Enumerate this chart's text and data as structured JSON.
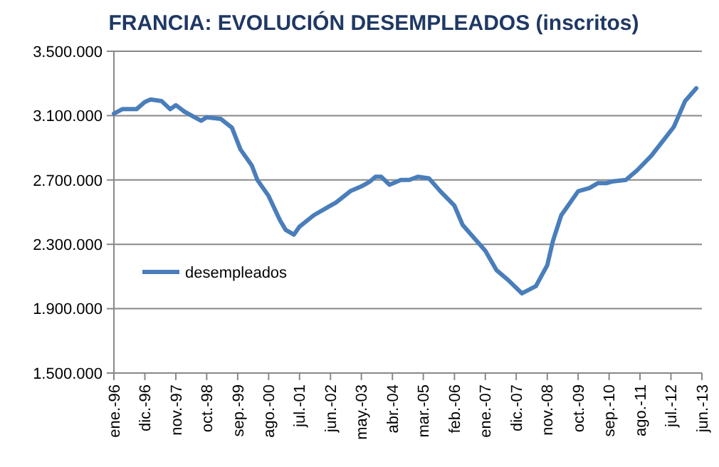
{
  "chart_data": {
    "type": "line",
    "title": "FRANCIA: EVOLUCIÓN DESEMPLEADOS (inscritos)",
    "x": [
      "1996-01",
      "1996-04",
      "1996-09",
      "1996-12",
      "1997-02",
      "1997-06",
      "1997-09",
      "1997-11",
      "1998-02",
      "1998-05",
      "1998-08",
      "1998-10",
      "1999-03",
      "1999-07",
      "1999-10",
      "2000-02",
      "2000-04",
      "2000-08",
      "2000-12",
      "2001-02",
      "2001-05",
      "2001-07",
      "2001-12",
      "2002-05",
      "2002-08",
      "2003-01",
      "2003-05",
      "2003-08",
      "2003-10",
      "2003-12",
      "2004-03",
      "2004-07",
      "2004-10",
      "2005-01",
      "2005-05",
      "2005-09",
      "2006-02",
      "2006-05",
      "2006-09",
      "2007-01",
      "2007-05",
      "2007-09",
      "2008-02",
      "2008-07",
      "2008-11",
      "2009-01",
      "2009-04",
      "2009-06",
      "2009-10",
      "2010-02",
      "2010-05",
      "2010-08",
      "2010-10",
      "2011-03",
      "2011-07",
      "2011-12",
      "2012-04",
      "2012-08",
      "2012-10",
      "2012-12",
      "2013-04"
    ],
    "series": [
      {
        "name": "desempleados",
        "color": "#4a7ebb",
        "values": [
          3112000,
          3140000,
          3140000,
          3185000,
          3200000,
          3190000,
          3140000,
          3165000,
          3125000,
          3097000,
          3068000,
          3090000,
          3080000,
          3025000,
          2890000,
          2790000,
          2700000,
          2600000,
          2450000,
          2390000,
          2360000,
          2410000,
          2480000,
          2530000,
          2560000,
          2630000,
          2660000,
          2690000,
          2720000,
          2720000,
          2670000,
          2700000,
          2700000,
          2720000,
          2710000,
          2630000,
          2540000,
          2420000,
          2340000,
          2260000,
          2140000,
          2080000,
          1995000,
          2040000,
          2170000,
          2320000,
          2480000,
          2530000,
          2630000,
          2650000,
          2680000,
          2680000,
          2690000,
          2700000,
          2760000,
          2850000,
          2940000,
          3030000,
          3110000,
          3190000,
          3270000
        ]
      }
    ],
    "xlim": [
      "1996-01",
      "2013-06"
    ],
    "xticks": [
      {
        "value": "1996-01",
        "label": "ene.-96"
      },
      {
        "value": "1996-12",
        "label": "dic.-96"
      },
      {
        "value": "1997-11",
        "label": "nov.-97"
      },
      {
        "value": "1998-10",
        "label": "oct.-98"
      },
      {
        "value": "1999-09",
        "label": "sep.-99"
      },
      {
        "value": "2000-08",
        "label": "ago.-00"
      },
      {
        "value": "2001-07",
        "label": "jul.-01"
      },
      {
        "value": "2002-06",
        "label": "jun.-02"
      },
      {
        "value": "2003-05",
        "label": "may.-03"
      },
      {
        "value": "2004-04",
        "label": "abr.-04"
      },
      {
        "value": "2005-03",
        "label": "mar.-05"
      },
      {
        "value": "2006-02",
        "label": "feb.-06"
      },
      {
        "value": "2007-01",
        "label": "ene.-07"
      },
      {
        "value": "2007-12",
        "label": "dic.-07"
      },
      {
        "value": "2008-11",
        "label": "nov.-08"
      },
      {
        "value": "2009-10",
        "label": "oct.-09"
      },
      {
        "value": "2010-09",
        "label": "sep.-10"
      },
      {
        "value": "2011-08",
        "label": "ago.-11"
      },
      {
        "value": "2012-07",
        "label": "jul.-12"
      },
      {
        "value": "2013-06",
        "label": "jun.-13"
      }
    ],
    "ylim": [
      1500000,
      3500000
    ],
    "yticks": [
      {
        "value": 1500000,
        "label": "1.500.000"
      },
      {
        "value": 1900000,
        "label": "1.900.000"
      },
      {
        "value": 2300000,
        "label": "2.300.000"
      },
      {
        "value": 2700000,
        "label": "2.700.000"
      },
      {
        "value": 3100000,
        "label": "3.100.000"
      },
      {
        "value": 3500000,
        "label": "3.500.000"
      }
    ],
    "grid": "y",
    "legend": "left",
    "marker": "none",
    "line_style": "solid"
  }
}
